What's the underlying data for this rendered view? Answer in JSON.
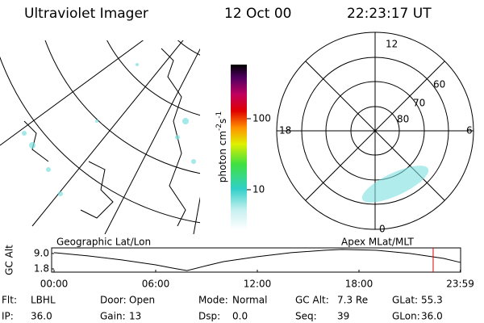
{
  "header": {
    "title": "Ultraviolet Imager",
    "date": "12 Oct 00",
    "time": "22:23:17 UT"
  },
  "geo_map": {
    "label": "Geographic Lat/Lon"
  },
  "colorbar": {
    "label": [
      "photon cm",
      "-2",
      "s",
      "-1"
    ],
    "lim": [
      2.7,
      577
    ],
    "ticks": [
      10,
      100
    ],
    "log_scale": true
  },
  "polar_map": {
    "label": "Apex MLat/MLT",
    "hour_labels": [
      "12",
      "6",
      "0",
      "18"
    ],
    "lat_labels": [
      "60",
      "70",
      "80"
    ]
  },
  "chart_data": {
    "type": "line",
    "ylabel": "GC Alt",
    "x": [
      0,
      2,
      4,
      6,
      7,
      7.85,
      9,
      10,
      12,
      14,
      16,
      17,
      19,
      21,
      23,
      24
    ],
    "values": [
      9.4,
      7.9,
      6.0,
      3.7,
      2.2,
      1.0,
      3.3,
      5.2,
      7.5,
      9.4,
      10.5,
      10.9,
      10.5,
      9.0,
      6.7,
      4.8
    ],
    "color": "#000000",
    "xlim": [
      0,
      24
    ],
    "ylim": [
      0.3,
      11.6
    ],
    "xticks": [
      {
        "value": 0,
        "label": "00:00"
      },
      {
        "value": 6,
        "label": "06:00"
      },
      {
        "value": 12,
        "label": "12:00"
      },
      {
        "value": 18,
        "label": "18:00"
      },
      {
        "value": 23.98,
        "label": "23:59"
      }
    ],
    "yticks": [
      {
        "value": 9,
        "label": "9.0"
      },
      {
        "value": 1.8,
        "label": "1.8"
      }
    ],
    "marker_x": 22.38,
    "marker_color": "#e00000"
  },
  "footer": {
    "rows": [
      [
        {
          "label": "Flt:",
          "value": "LBHL"
        },
        {
          "label": "Door:",
          "value": "Open"
        },
        {
          "label": "Mode:",
          "value": "Normal"
        },
        {
          "label": "GC Alt:",
          "value": "7.3 Re"
        },
        {
          "label": "GLat:",
          "value": "55.3"
        }
      ],
      [
        {
          "label": "IP:",
          "value": "36.0"
        },
        {
          "label": "Gain:",
          "value": "13"
        },
        {
          "label": "Dsp:",
          "value": "0.0"
        },
        {
          "label": "Seq:",
          "value": "39"
        },
        {
          "label": "GLon:",
          "value": "36.0"
        }
      ]
    ]
  }
}
